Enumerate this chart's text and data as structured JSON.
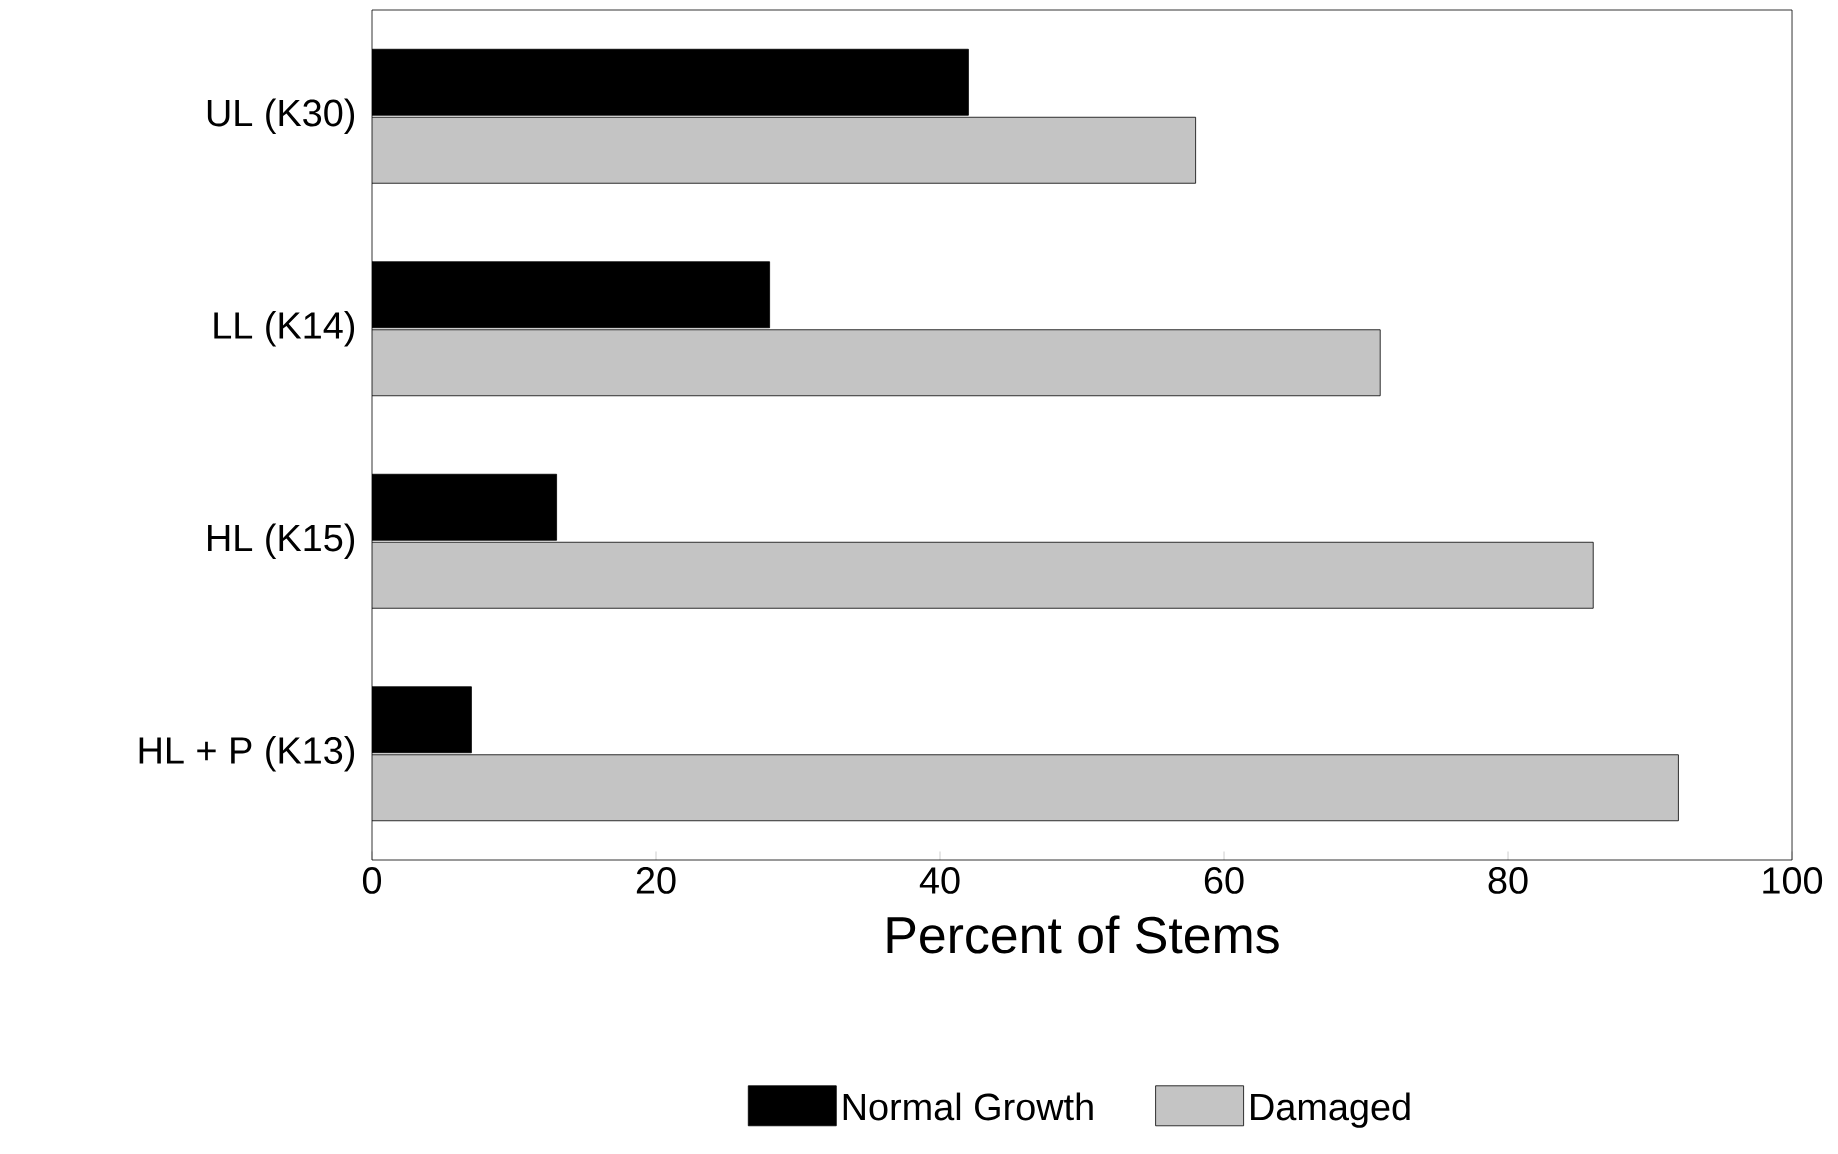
{
  "chart_data": {
    "type": "bar",
    "orientation": "horizontal",
    "xlabel": "Percent of Stems",
    "categories": [
      "UL (K30)",
      "LL (K14)",
      "HL (K15)",
      "HL + P (K13)"
    ],
    "series": [
      {
        "name": "Normal Growth",
        "color": "#000000",
        "values": [
          42,
          28,
          13,
          7
        ]
      },
      {
        "name": "Damaged",
        "color": "#c4c4c4",
        "values": [
          58,
          71,
          86,
          92
        ]
      }
    ],
    "xlim": [
      0,
      100
    ],
    "xticks": [
      0,
      20,
      40,
      60,
      80,
      100
    ],
    "grid": false,
    "legend": "bottom"
  }
}
